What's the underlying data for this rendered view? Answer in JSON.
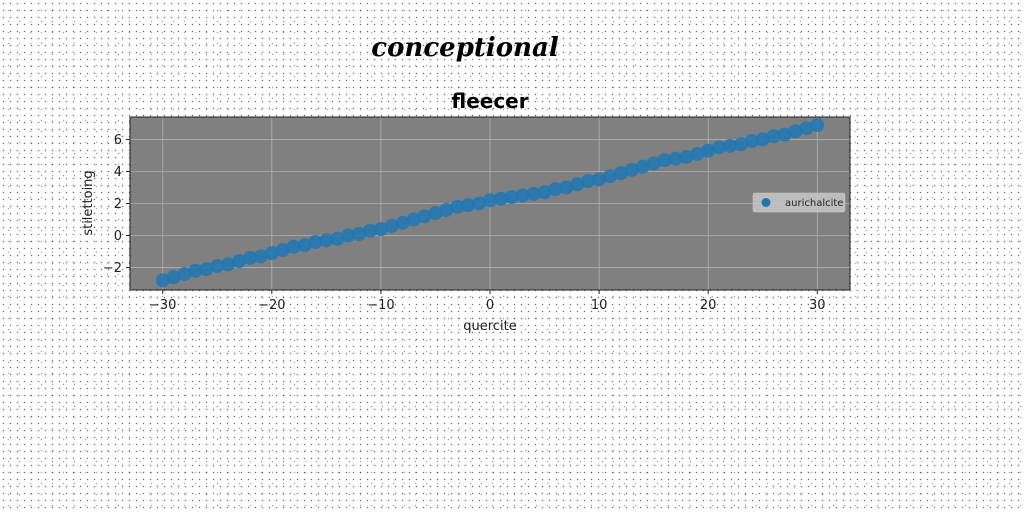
{
  "suptitle": "conceptional",
  "chart_data": {
    "type": "scatter",
    "title": "fleecer",
    "xlabel": "quercite",
    "ylabel": "stilettoing",
    "xlim": [
      -33,
      33
    ],
    "ylim": [
      -3.4,
      7.4
    ],
    "xticks": [
      -30,
      -20,
      -10,
      0,
      10,
      20,
      30
    ],
    "yticks": [
      -2,
      0,
      2,
      4,
      6
    ],
    "grid": true,
    "legend_position": "center-right",
    "series": [
      {
        "name": "aurichalcite",
        "color": "#1f77b4",
        "x": [
          -30.0,
          -29.0,
          -28.0,
          -27.0,
          -26.0,
          -25.0,
          -24.0,
          -23.0,
          -22.0,
          -21.0,
          -20.0,
          -19.0,
          -18.0,
          -17.0,
          -16.0,
          -15.0,
          -14.0,
          -13.0,
          -12.0,
          -11.0,
          -10.0,
          -9.0,
          -8.0,
          -7.0,
          -6.0,
          -5.0,
          -4.0,
          -3.0,
          -2.0,
          -1.0,
          0.0,
          1.0,
          2.0,
          3.0,
          4.0,
          5.0,
          6.0,
          7.0,
          8.0,
          9.0,
          10.0,
          11.0,
          12.0,
          13.0,
          14.0,
          15.0,
          16.0,
          17.0,
          18.0,
          19.0,
          20.0,
          21.0,
          22.0,
          23.0,
          24.0,
          25.0,
          26.0,
          27.0,
          28.0,
          29.0,
          30.0
        ],
        "y": [
          -2.8,
          -2.6,
          -2.4,
          -2.2,
          -2.1,
          -1.9,
          -1.8,
          -1.6,
          -1.4,
          -1.3,
          -1.1,
          -0.9,
          -0.7,
          -0.6,
          -0.4,
          -0.3,
          -0.2,
          0.0,
          0.1,
          0.3,
          0.4,
          0.6,
          0.8,
          1.0,
          1.2,
          1.4,
          1.6,
          1.8,
          1.9,
          2.0,
          2.2,
          2.3,
          2.4,
          2.5,
          2.6,
          2.7,
          2.9,
          3.0,
          3.2,
          3.4,
          3.5,
          3.7,
          3.9,
          4.1,
          4.3,
          4.5,
          4.7,
          4.8,
          4.9,
          5.1,
          5.3,
          5.5,
          5.6,
          5.7,
          5.9,
          6.0,
          6.2,
          6.3,
          6.5,
          6.7,
          6.9
        ]
      }
    ]
  }
}
